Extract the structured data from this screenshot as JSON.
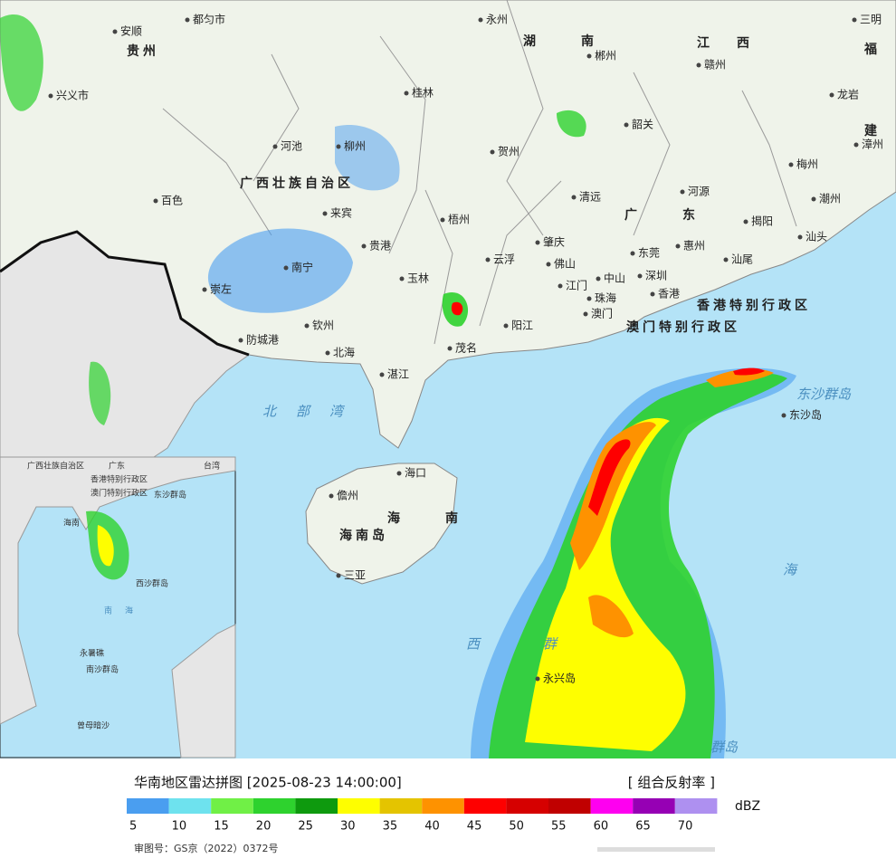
{
  "title": "华南地区雷达拼图 [2025-08-23 14:00:00]",
  "product": "[ 组合反射率 ]",
  "unit": "dBZ",
  "approval": "审图号：GS京（2022）0372号",
  "legend": {
    "colors": [
      "#4a9ef0",
      "#6ee2ee",
      "#70f046",
      "#2ed22e",
      "#0e9a0e",
      "#fefe00",
      "#e4c400",
      "#fe9200",
      "#fe0000",
      "#d60000",
      "#c00000",
      "#fe00f0",
      "#9600b4",
      "#ae90f0"
    ],
    "ticks": [
      5,
      10,
      15,
      20,
      25,
      30,
      35,
      40,
      45,
      50,
      55,
      60,
      65,
      70
    ]
  },
  "map_labels": [
    "安顺",
    "都匀市",
    "永州",
    "湖南",
    "郴州",
    "江西",
    "赣州",
    "三明",
    "福",
    "贵州",
    "兴义市",
    "桂林",
    "韶关",
    "龙岩",
    "建",
    "漳州",
    "河池",
    "柳州",
    "贺州",
    "梅州",
    "广西壮族自治区",
    "百色",
    "清远",
    "河源",
    "潮州",
    "来宾",
    "梧州",
    "广东",
    "揭阳",
    "汕头",
    "贵港",
    "肇庆",
    "东莞",
    "惠州",
    "南宁",
    "云浮",
    "佛山",
    "汕尾",
    "玉林",
    "中山",
    "深圳",
    "崇左",
    "江门",
    "香港",
    "珠海",
    "香港特别行政区",
    "澳门",
    "钦州",
    "阳江",
    "澳门特别行政区",
    "防城港",
    "北海",
    "茂名",
    "湛江",
    "东沙群岛",
    "东沙岛",
    "北部湾",
    "海口",
    "儋州",
    "海南岛",
    "海南",
    "海",
    "三亚",
    "西",
    "群",
    "永兴岛",
    "群岛"
  ],
  "inset_labels": [
    "广西壮族自治区",
    "广东",
    "台湾",
    "香港特别行政区",
    "澳门特别行政区",
    "东沙群岛",
    "海南",
    "西沙群岛",
    "南海",
    "永暑礁",
    "南沙群岛",
    "曾母暗沙"
  ]
}
